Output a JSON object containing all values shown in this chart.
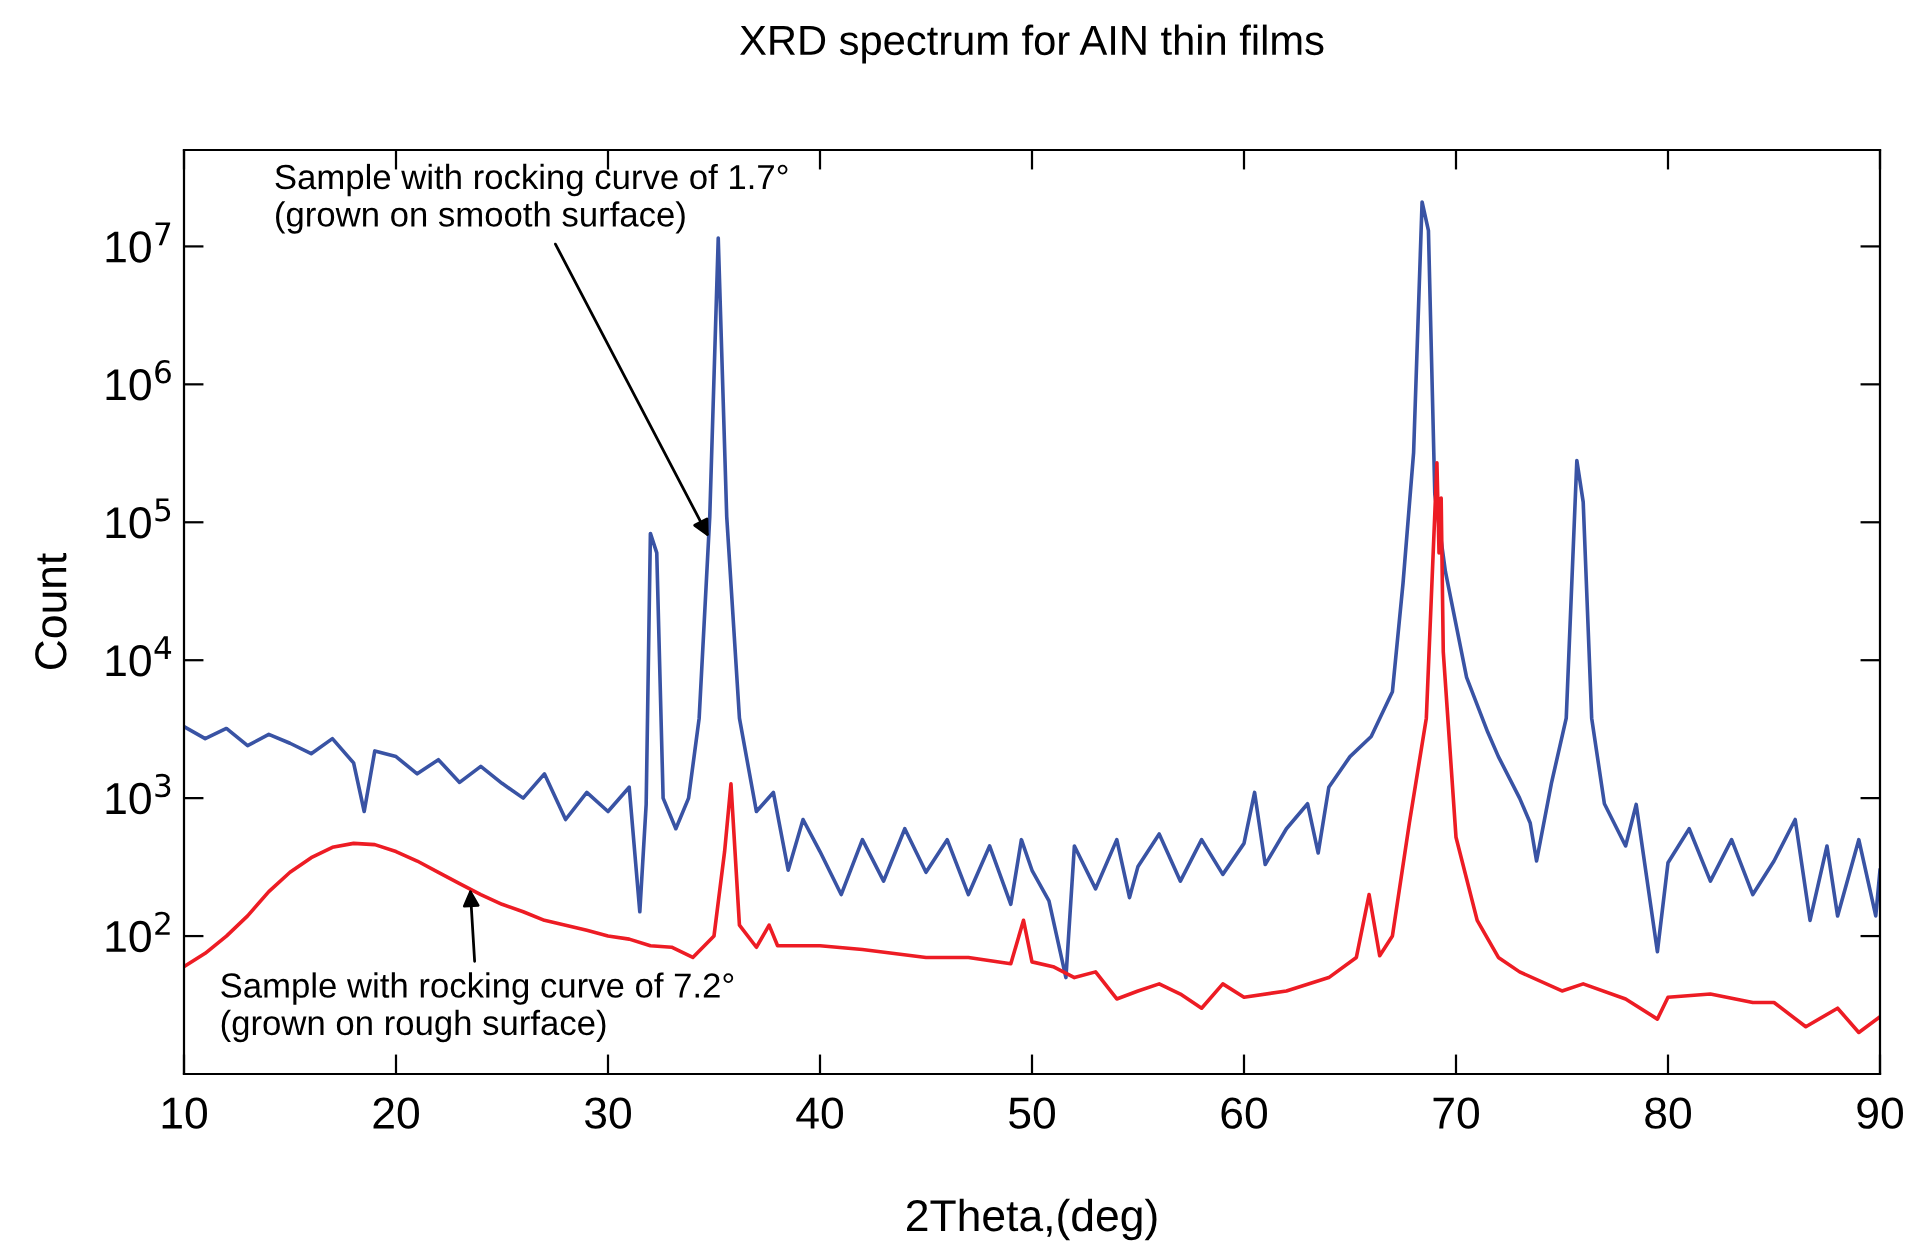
{
  "chart_data": {
    "type": "line",
    "title": "XRD spectrum for AIN thin films",
    "xlabel": "2Theta,(deg)",
    "ylabel": "Count",
    "log": "y",
    "grid": false,
    "legend": false,
    "marker": "none",
    "line_style": "solid",
    "xlim": [
      10,
      90
    ],
    "xticks": [
      10,
      20,
      30,
      40,
      50,
      60,
      70,
      80,
      90
    ],
    "ylim": [
      10,
      50000000
    ],
    "yticks": [
      {
        "value": 100,
        "label": "10$^{2}$"
      },
      {
        "value": 1000,
        "label": "10$^{3}$"
      },
      {
        "value": 10000,
        "label": "10$^{4}$"
      },
      {
        "value": 100000,
        "label": "10$^{5}$"
      },
      {
        "value": 1000000,
        "label": "10$^{6}$"
      },
      {
        "value": 10000000,
        "label": "10$^{7}$"
      }
    ],
    "series": [
      {
        "color": "#3953a4",
        "x": [
          10,
          11,
          12,
          13,
          14,
          15,
          16,
          17,
          18,
          18.5,
          19,
          20,
          21,
          22,
          23,
          24,
          25,
          26,
          27,
          28,
          29,
          30,
          31,
          31.5,
          31.8,
          32,
          32.3,
          32.6,
          33.2,
          33.8,
          34.3,
          34.8,
          35.2,
          35.6,
          36.2,
          37,
          37.8,
          38.5,
          39.2,
          40,
          41,
          42,
          43,
          44,
          45,
          46,
          47,
          48,
          49,
          49.5,
          50,
          50.8,
          51.6,
          52,
          53,
          54,
          54.6,
          55,
          56,
          57,
          58,
          59,
          60,
          60.5,
          61,
          62,
          63,
          63.5,
          64,
          65,
          66,
          67,
          67.5,
          68,
          68.4,
          68.7,
          69,
          69.5,
          70.5,
          71.5,
          72,
          73,
          73.5,
          73.8,
          74.5,
          75.2,
          75.7,
          76,
          76.4,
          77,
          78,
          78.5,
          79.5,
          80,
          81,
          82,
          83,
          84,
          85,
          86,
          86.7,
          87.5,
          88,
          89,
          89.8,
          90
        ],
        "values": [
          3300,
          2700,
          3200,
          2400,
          2900,
          2500,
          2100,
          2700,
          1800,
          800,
          2200,
          2000,
          1500,
          1900,
          1300,
          1700,
          1280,
          1000,
          1500,
          700,
          1100,
          800,
          1200,
          150,
          900,
          83000,
          60000,
          1000,
          600,
          1000,
          3800,
          110000,
          11500000,
          110000,
          3800,
          800,
          1100,
          300,
          700,
          410,
          200,
          500,
          250,
          600,
          290,
          500,
          200,
          450,
          170,
          500,
          300,
          180,
          50,
          450,
          220,
          500,
          190,
          320,
          550,
          250,
          500,
          280,
          470,
          1100,
          330,
          600,
          910,
          400,
          1200,
          2000,
          2800,
          5900,
          36000,
          320000,
          21000000,
          13000000,
          160000,
          44000,
          7500,
          3000,
          2000,
          1000,
          660,
          350,
          1280,
          3800,
          280000,
          140000,
          3800,
          910,
          450,
          900,
          77,
          340,
          600,
          250,
          500,
          200,
          350,
          700,
          130,
          450,
          140,
          500,
          140,
          300
        ]
      },
      {
        "color": "#ed1c24",
        "x": [
          10,
          11,
          12,
          13,
          14,
          15,
          16,
          17,
          18,
          19,
          20,
          21,
          22,
          23,
          24,
          25,
          26,
          27,
          28,
          29,
          30,
          31,
          32,
          33,
          34,
          35,
          35.5,
          35.8,
          36.2,
          37,
          37.6,
          38,
          40,
          42,
          45,
          47,
          49,
          49.6,
          50,
          51,
          52,
          53,
          54,
          55,
          56,
          57,
          58,
          59,
          60,
          62,
          64,
          65.3,
          65.9,
          66.4,
          67,
          67.8,
          68.6,
          69.1,
          69.2,
          69.3,
          69.4,
          70,
          71,
          72,
          73,
          75,
          76,
          78,
          79.5,
          80,
          82,
          84,
          85,
          86.5,
          88,
          89,
          90
        ],
        "values": [
          60,
          75,
          100,
          140,
          210,
          290,
          370,
          440,
          470,
          460,
          410,
          350,
          290,
          240,
          200,
          170,
          150,
          130,
          120,
          110,
          100,
          95,
          85,
          83,
          70,
          100,
          410,
          1270,
          120,
          83,
          120,
          85,
          85,
          80,
          70,
          70,
          63,
          130,
          65,
          60,
          50,
          55,
          35,
          40,
          45,
          38,
          30,
          45,
          36,
          40,
          50,
          70,
          200,
          72,
          100,
          660,
          3800,
          270000,
          60000,
          150000,
          11500,
          520,
          130,
          70,
          55,
          40,
          45,
          35,
          25,
          36,
          38,
          33,
          33,
          22,
          30,
          20,
          26
        ]
      }
    ],
    "annotations": [
      {
        "text": "Sample with rocking curve of 1.7°\n(grown on smooth surface)",
        "x": 34.75,
        "y": 78000
      },
      {
        "text": "Sample with rocking curve of 7.2°\n(grown on rough surface)",
        "x": 23.5,
        "y": 220
      }
    ]
  }
}
